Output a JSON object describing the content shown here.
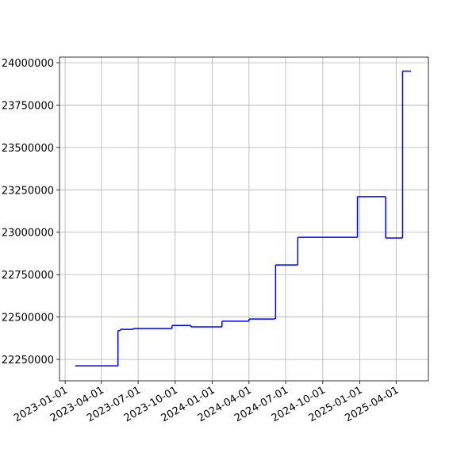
{
  "chart_data": {
    "type": "line",
    "drawstyle": "steps-post",
    "x": [
      "2023-01-26",
      "2023-05-12",
      "2023-05-18",
      "2023-06-19",
      "2023-09-23",
      "2023-11-09",
      "2024-01-25",
      "2024-04-01",
      "2024-06-02",
      "2024-06-06",
      "2024-07-31",
      "2024-12-26",
      "2025-03-06",
      "2025-04-17",
      "2025-05-08"
    ],
    "series": [
      {
        "color": "#0000ff",
        "values": [
          22212000,
          22420000,
          22427000,
          22432000,
          22450000,
          22442000,
          22475000,
          22488000,
          22490000,
          22807000,
          22970000,
          23210000,
          22966000,
          23950000,
          23950000
        ]
      }
    ],
    "xlim": [
      "2022-12-18",
      "2025-06-20"
    ],
    "xticks": [
      "2023-01-01",
      "2023-04-01",
      "2023-07-01",
      "2023-10-01",
      "2024-01-01",
      "2024-04-01",
      "2024-07-01",
      "2024-10-01",
      "2025-01-01",
      "2025-04-01"
    ],
    "ylim": [
      22123700,
      24032750
    ],
    "yticks": [
      22250000,
      22500000,
      22750000,
      23000000,
      23250000,
      23500000,
      23750000,
      24000000
    ],
    "grid": true
  }
}
